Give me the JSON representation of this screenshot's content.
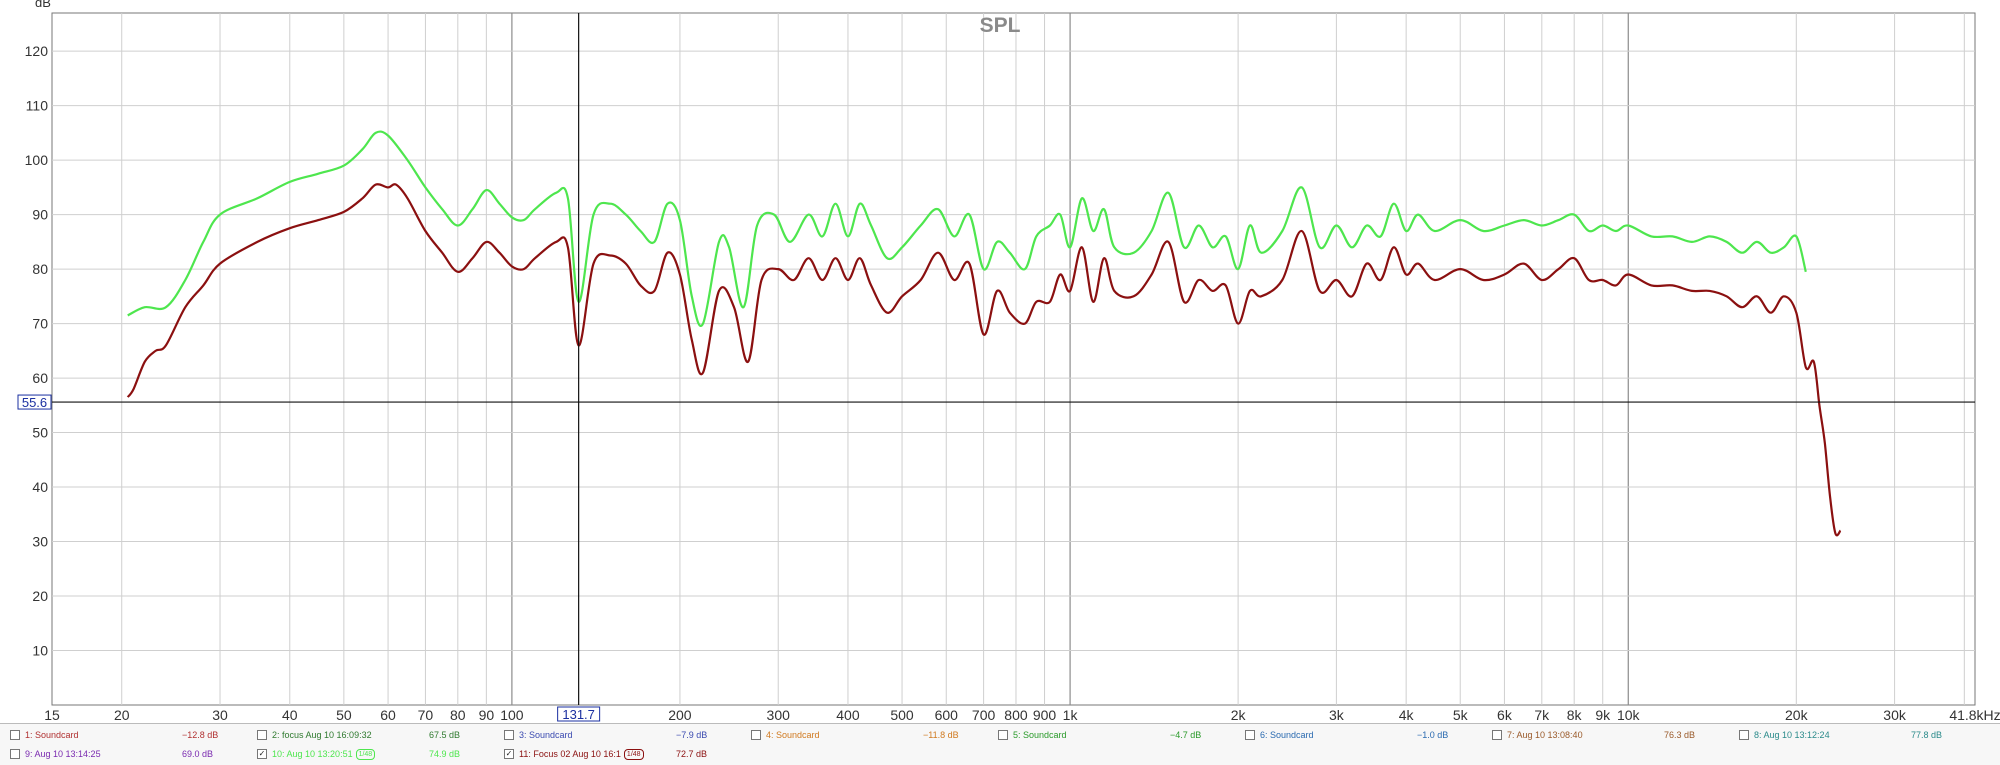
{
  "chart_data": {
    "type": "line",
    "title": "SPL",
    "ylabel": "dB",
    "xlabel": "",
    "x_scale": "log",
    "xlim": [
      15,
      41800
    ],
    "ylim": [
      0,
      127
    ],
    "grid": true,
    "x_ticks": [
      {
        "v": 15,
        "label": "15"
      },
      {
        "v": 20,
        "label": "20"
      },
      {
        "v": 30,
        "label": "30"
      },
      {
        "v": 40,
        "label": "40"
      },
      {
        "v": 50,
        "label": "50"
      },
      {
        "v": 60,
        "label": "60"
      },
      {
        "v": 70,
        "label": "70"
      },
      {
        "v": 80,
        "label": "80"
      },
      {
        "v": 90,
        "label": "90"
      },
      {
        "v": 100,
        "label": "100"
      },
      {
        "v": 200,
        "label": "200"
      },
      {
        "v": 300,
        "label": "300"
      },
      {
        "v": 400,
        "label": "400"
      },
      {
        "v": 500,
        "label": "500"
      },
      {
        "v": 600,
        "label": "600"
      },
      {
        "v": 700,
        "label": "700"
      },
      {
        "v": 800,
        "label": "800"
      },
      {
        "v": 900,
        "label": "900"
      },
      {
        "v": 1000,
        "label": "1k"
      },
      {
        "v": 2000,
        "label": "2k"
      },
      {
        "v": 3000,
        "label": "3k"
      },
      {
        "v": 4000,
        "label": "4k"
      },
      {
        "v": 5000,
        "label": "5k"
      },
      {
        "v": 6000,
        "label": "6k"
      },
      {
        "v": 7000,
        "label": "7k"
      },
      {
        "v": 8000,
        "label": "8k"
      },
      {
        "v": 9000,
        "label": "9k"
      },
      {
        "v": 10000,
        "label": "10k"
      },
      {
        "v": 20000,
        "label": "20k"
      },
      {
        "v": 30000,
        "label": "30k"
      },
      {
        "v": 41800,
        "label": "41.8kHz"
      }
    ],
    "y_ticks": [
      10,
      20,
      30,
      40,
      50,
      60,
      70,
      80,
      90,
      100,
      110,
      120
    ],
    "cursor": {
      "x": 131.7,
      "x_label": "131.7",
      "y": 55.6,
      "y_label": "55.6"
    },
    "series": [
      {
        "color": "#4ee64e",
        "points": [
          [
            20.5,
            71.5
          ],
          [
            22,
            73
          ],
          [
            24,
            73
          ],
          [
            26,
            78
          ],
          [
            28,
            85
          ],
          [
            30,
            90
          ],
          [
            35,
            93
          ],
          [
            40,
            96
          ],
          [
            45,
            97.5
          ],
          [
            50,
            99
          ],
          [
            54,
            102
          ],
          [
            57,
            105
          ],
          [
            60,
            104.5
          ],
          [
            65,
            100
          ],
          [
            70,
            95
          ],
          [
            75,
            91
          ],
          [
            80,
            88
          ],
          [
            85,
            91
          ],
          [
            90,
            94.5
          ],
          [
            95,
            92
          ],
          [
            100,
            89.5
          ],
          [
            105,
            89
          ],
          [
            110,
            91
          ],
          [
            120,
            94
          ],
          [
            126,
            93
          ],
          [
            131.7,
            74
          ],
          [
            140,
            90
          ],
          [
            150,
            92
          ],
          [
            160,
            90
          ],
          [
            170,
            87
          ],
          [
            180,
            85
          ],
          [
            190,
            92
          ],
          [
            200,
            89
          ],
          [
            210,
            75
          ],
          [
            220,
            70
          ],
          [
            235,
            85
          ],
          [
            245,
            84
          ],
          [
            260,
            73
          ],
          [
            275,
            88
          ],
          [
            295,
            90
          ],
          [
            315,
            85
          ],
          [
            340,
            90
          ],
          [
            360,
            86
          ],
          [
            380,
            92
          ],
          [
            400,
            86
          ],
          [
            420,
            92
          ],
          [
            440,
            88
          ],
          [
            470,
            82
          ],
          [
            500,
            84
          ],
          [
            540,
            88
          ],
          [
            580,
            91
          ],
          [
            620,
            86
          ],
          [
            660,
            90
          ],
          [
            700,
            80
          ],
          [
            740,
            85
          ],
          [
            780,
            83
          ],
          [
            830,
            80
          ],
          [
            870,
            86
          ],
          [
            920,
            88
          ],
          [
            960,
            90
          ],
          [
            1000,
            84
          ],
          [
            1050,
            93
          ],
          [
            1100,
            87
          ],
          [
            1150,
            91
          ],
          [
            1200,
            84
          ],
          [
            1300,
            83
          ],
          [
            1400,
            87
          ],
          [
            1500,
            94
          ],
          [
            1600,
            84
          ],
          [
            1700,
            88
          ],
          [
            1800,
            84
          ],
          [
            1900,
            86
          ],
          [
            2000,
            80
          ],
          [
            2100,
            88
          ],
          [
            2200,
            83
          ],
          [
            2400,
            87
          ],
          [
            2600,
            95
          ],
          [
            2800,
            84
          ],
          [
            3000,
            88
          ],
          [
            3200,
            84
          ],
          [
            3400,
            88
          ],
          [
            3600,
            86
          ],
          [
            3800,
            92
          ],
          [
            4000,
            87
          ],
          [
            4200,
            90
          ],
          [
            4500,
            87
          ],
          [
            5000,
            89
          ],
          [
            5500,
            87
          ],
          [
            6000,
            88
          ],
          [
            6500,
            89
          ],
          [
            7000,
            88
          ],
          [
            7500,
            89
          ],
          [
            8000,
            90
          ],
          [
            8500,
            87
          ],
          [
            9000,
            88
          ],
          [
            9500,
            87
          ],
          [
            10000,
            88
          ],
          [
            11000,
            86
          ],
          [
            12000,
            86
          ],
          [
            13000,
            85
          ],
          [
            14000,
            86
          ],
          [
            15000,
            85
          ],
          [
            16000,
            83
          ],
          [
            17000,
            85
          ],
          [
            18000,
            83
          ],
          [
            19000,
            84
          ],
          [
            20000,
            86
          ],
          [
            20800,
            79.5
          ]
        ]
      },
      {
        "color": "#8b1010",
        "points": [
          [
            20.5,
            56.5
          ],
          [
            21,
            58
          ],
          [
            22,
            63
          ],
          [
            23,
            65
          ],
          [
            24,
            66
          ],
          [
            26,
            73
          ],
          [
            28,
            77
          ],
          [
            30,
            81
          ],
          [
            35,
            85
          ],
          [
            40,
            87.5
          ],
          [
            45,
            89
          ],
          [
            50,
            90.5
          ],
          [
            54,
            93
          ],
          [
            57,
            95.5
          ],
          [
            60,
            95
          ],
          [
            62,
            95.5
          ],
          [
            65,
            93
          ],
          [
            70,
            87
          ],
          [
            75,
            83
          ],
          [
            80,
            79.5
          ],
          [
            85,
            82
          ],
          [
            90,
            85
          ],
          [
            95,
            83
          ],
          [
            100,
            80.5
          ],
          [
            105,
            80
          ],
          [
            110,
            82
          ],
          [
            120,
            85
          ],
          [
            126,
            84
          ],
          [
            131.7,
            66
          ],
          [
            140,
            81
          ],
          [
            150,
            82.5
          ],
          [
            160,
            81
          ],
          [
            170,
            77
          ],
          [
            180,
            76
          ],
          [
            190,
            83
          ],
          [
            200,
            79
          ],
          [
            210,
            67
          ],
          [
            220,
            61
          ],
          [
            235,
            76
          ],
          [
            250,
            73
          ],
          [
            265,
            63
          ],
          [
            280,
            78
          ],
          [
            300,
            80
          ],
          [
            320,
            78
          ],
          [
            340,
            82
          ],
          [
            360,
            78
          ],
          [
            380,
            82
          ],
          [
            400,
            78
          ],
          [
            420,
            82
          ],
          [
            440,
            77
          ],
          [
            470,
            72
          ],
          [
            500,
            75
          ],
          [
            540,
            78
          ],
          [
            580,
            83
          ],
          [
            620,
            78
          ],
          [
            660,
            81
          ],
          [
            700,
            68
          ],
          [
            740,
            76
          ],
          [
            780,
            72
          ],
          [
            830,
            70
          ],
          [
            870,
            74
          ],
          [
            920,
            74
          ],
          [
            960,
            79
          ],
          [
            1000,
            76
          ],
          [
            1050,
            84
          ],
          [
            1100,
            74
          ],
          [
            1150,
            82
          ],
          [
            1200,
            76
          ],
          [
            1300,
            75
          ],
          [
            1400,
            79
          ],
          [
            1500,
            85
          ],
          [
            1600,
            74
          ],
          [
            1700,
            78
          ],
          [
            1800,
            76
          ],
          [
            1900,
            77
          ],
          [
            2000,
            70
          ],
          [
            2100,
            76
          ],
          [
            2200,
            75
          ],
          [
            2400,
            78
          ],
          [
            2600,
            87
          ],
          [
            2800,
            76
          ],
          [
            3000,
            78
          ],
          [
            3200,
            75
          ],
          [
            3400,
            81
          ],
          [
            3600,
            78
          ],
          [
            3800,
            84
          ],
          [
            4000,
            79
          ],
          [
            4200,
            81
          ],
          [
            4500,
            78
          ],
          [
            5000,
            80
          ],
          [
            5500,
            78
          ],
          [
            6000,
            79
          ],
          [
            6500,
            81
          ],
          [
            7000,
            78
          ],
          [
            7500,
            80
          ],
          [
            8000,
            82
          ],
          [
            8500,
            78
          ],
          [
            9000,
            78
          ],
          [
            9500,
            77
          ],
          [
            10000,
            79
          ],
          [
            11000,
            77
          ],
          [
            12000,
            77
          ],
          [
            13000,
            76
          ],
          [
            14000,
            76
          ],
          [
            15000,
            75
          ],
          [
            16000,
            73
          ],
          [
            17000,
            75
          ],
          [
            18000,
            72
          ],
          [
            19000,
            75
          ],
          [
            20000,
            72
          ],
          [
            20800,
            62
          ],
          [
            21500,
            63
          ],
          [
            22000,
            55
          ],
          [
            22500,
            48
          ],
          [
            23000,
            38
          ],
          [
            23500,
            31.5
          ],
          [
            24000,
            32
          ]
        ]
      }
    ]
  },
  "legend": [
    {
      "label": "1: Soundcard",
      "value": "−12.8 dB",
      "color": "#b03030",
      "checked": false,
      "badge": ""
    },
    {
      "label": "2: focus Aug 10 16:09:32",
      "value": "67.5 dB",
      "color": "#2f7a2f",
      "checked": false,
      "badge": ""
    },
    {
      "label": "3: Soundcard",
      "value": "−7.9 dB",
      "color": "#3a4ab0",
      "checked": false,
      "badge": ""
    },
    {
      "label": "4: Soundcard",
      "value": "−11.8 dB",
      "color": "#d07a20",
      "checked": false,
      "badge": ""
    },
    {
      "label": "5: Soundcard",
      "value": "−4.7 dB",
      "color": "#2a9a2a",
      "checked": false,
      "badge": ""
    },
    {
      "label": "6: Soundcard",
      "value": "−1.0 dB",
      "color": "#2a6ab0",
      "checked": false,
      "badge": ""
    },
    {
      "label": "7: Aug 10 13:08:40",
      "value": "76.3 dB",
      "color": "#9a5a2a",
      "checked": false,
      "badge": ""
    },
    {
      "label": "8: Aug 10 13:12:24",
      "value": "77.8 dB",
      "color": "#2a8a8a",
      "checked": false,
      "badge": ""
    },
    {
      "label": "9: Aug 10 13:14:25",
      "value": "69.0 dB",
      "color": "#7a2ab0",
      "checked": false,
      "badge": ""
    },
    {
      "label": "10: Aug 10 13:20:51",
      "value": "74.9 dB",
      "color": "#4ee64e",
      "checked": true,
      "badge": "1/48"
    },
    {
      "label": "11: Focus 02 Aug 10 16:1",
      "value": "72.7 dB",
      "color": "#8b1010",
      "checked": true,
      "badge": "1/48"
    }
  ]
}
